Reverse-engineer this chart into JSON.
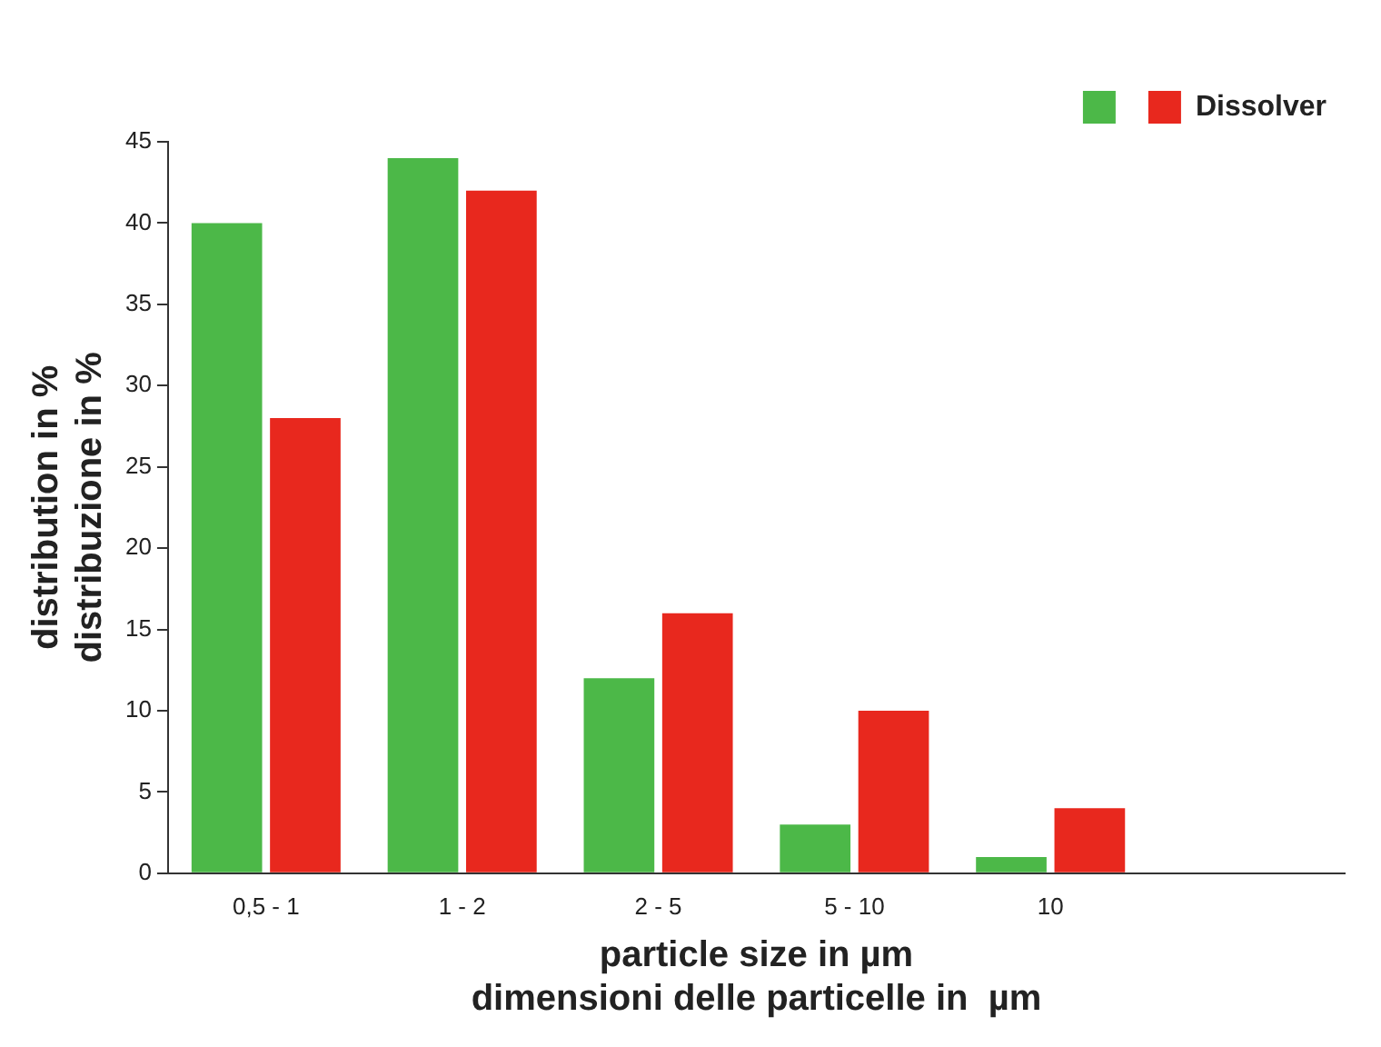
{
  "chart_data": {
    "type": "bar",
    "xlabel": "particle size in µm\ndimensioni delle particelle in  µm",
    "ylabel": "distribution in %\ndistribuzione in %",
    "categories": [
      "0,5 - 1",
      "1 - 2",
      "2 - 5",
      "5 - 10",
      "10",
      null
    ],
    "series": [
      {
        "color": "#4cb848",
        "values": [
          40,
          44,
          12,
          3,
          1,
          null
        ]
      },
      {
        "name": "Dissolver",
        "color": "#e8281e",
        "values": [
          28,
          42,
          16,
          10,
          4,
          null
        ]
      }
    ],
    "ylim": [
      0,
      45
    ],
    "yticks": [
      0,
      5,
      10,
      15,
      20,
      25,
      30,
      35,
      40,
      45
    ],
    "grid": false,
    "legend": "top right"
  }
}
